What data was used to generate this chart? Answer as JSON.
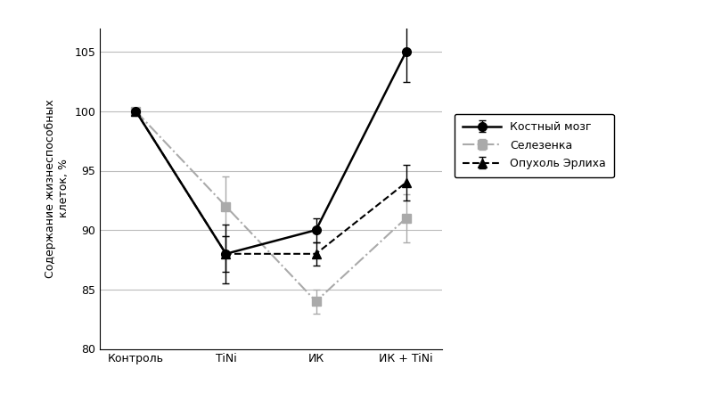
{
  "x_labels": [
    "Контроль",
    "TiNi",
    "ИК",
    "ИК + TiNi"
  ],
  "x_positions": [
    0,
    1,
    2,
    3
  ],
  "series": [
    {
      "name": "Костный мозг",
      "values": [
        100,
        88,
        90,
        105
      ],
      "yerr": [
        0,
        1.5,
        1.0,
        2.5
      ],
      "color": "#000000",
      "linestyle": "-",
      "marker": "o",
      "markersize": 7,
      "linewidth": 1.8,
      "zorder": 3
    },
    {
      "name": "Селезенка",
      "values": [
        100,
        92,
        84,
        91
      ],
      "yerr": [
        0,
        2.5,
        1.0,
        2.0
      ],
      "color": "#aaaaaa",
      "linestyle": "-.",
      "marker": "s",
      "markersize": 7,
      "linewidth": 1.5,
      "zorder": 2
    },
    {
      "name": "Опухоль Эрлиха",
      "values": [
        100,
        88,
        88,
        94
      ],
      "yerr": [
        0,
        2.5,
        1.0,
        1.5
      ],
      "color": "#000000",
      "linestyle": "--",
      "marker": "^",
      "markersize": 7,
      "linewidth": 1.5,
      "zorder": 2
    }
  ],
  "ylabel": "Содержание жизнеспособных\nклеток, %",
  "ylim": [
    80,
    107
  ],
  "yticks": [
    80,
    85,
    90,
    95,
    100,
    105
  ],
  "background_color": "#ffffff",
  "grid_color": "#bbbbbb",
  "ylabel_fontsize": 9,
  "tick_fontsize": 9,
  "legend_fontsize": 9
}
